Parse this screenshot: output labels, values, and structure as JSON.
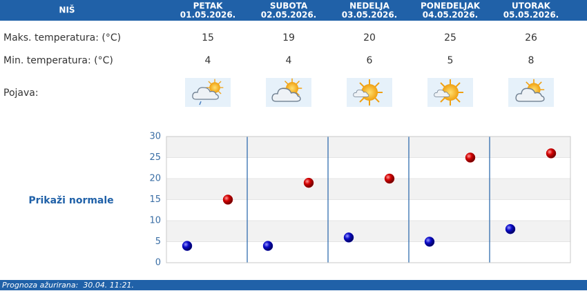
{
  "location": "NIŠ",
  "dates": [
    "01.05.2026.",
    "02.05.2026.",
    "03.05.2026.",
    "04.05.2026.",
    "05.05.2026."
  ],
  "weather_label": "Pojava:",
  "normals_link": "Prikaži normale",
  "footer": "Prognoza ažurirana:  30.04. 11:21.",
  "chart_data": {
    "type": "scatter",
    "categories": [
      "PETAK",
      "SUBOTA",
      "NEDELJA",
      "PONEDELJAK",
      "UTORAK"
    ],
    "series": [
      {
        "name": "Maks. temperatura: (°C)",
        "color": "#c40000",
        "values": [
          15,
          19,
          20,
          25,
          26
        ]
      },
      {
        "name": "Min. temperatura: (°C)",
        "color": "#0a0ac8",
        "values": [
          4,
          4,
          6,
          5,
          8
        ]
      }
    ],
    "ylim": [
      0,
      30
    ],
    "yticks": [
      0,
      5,
      10,
      15,
      20,
      25,
      30
    ],
    "grid": true
  }
}
